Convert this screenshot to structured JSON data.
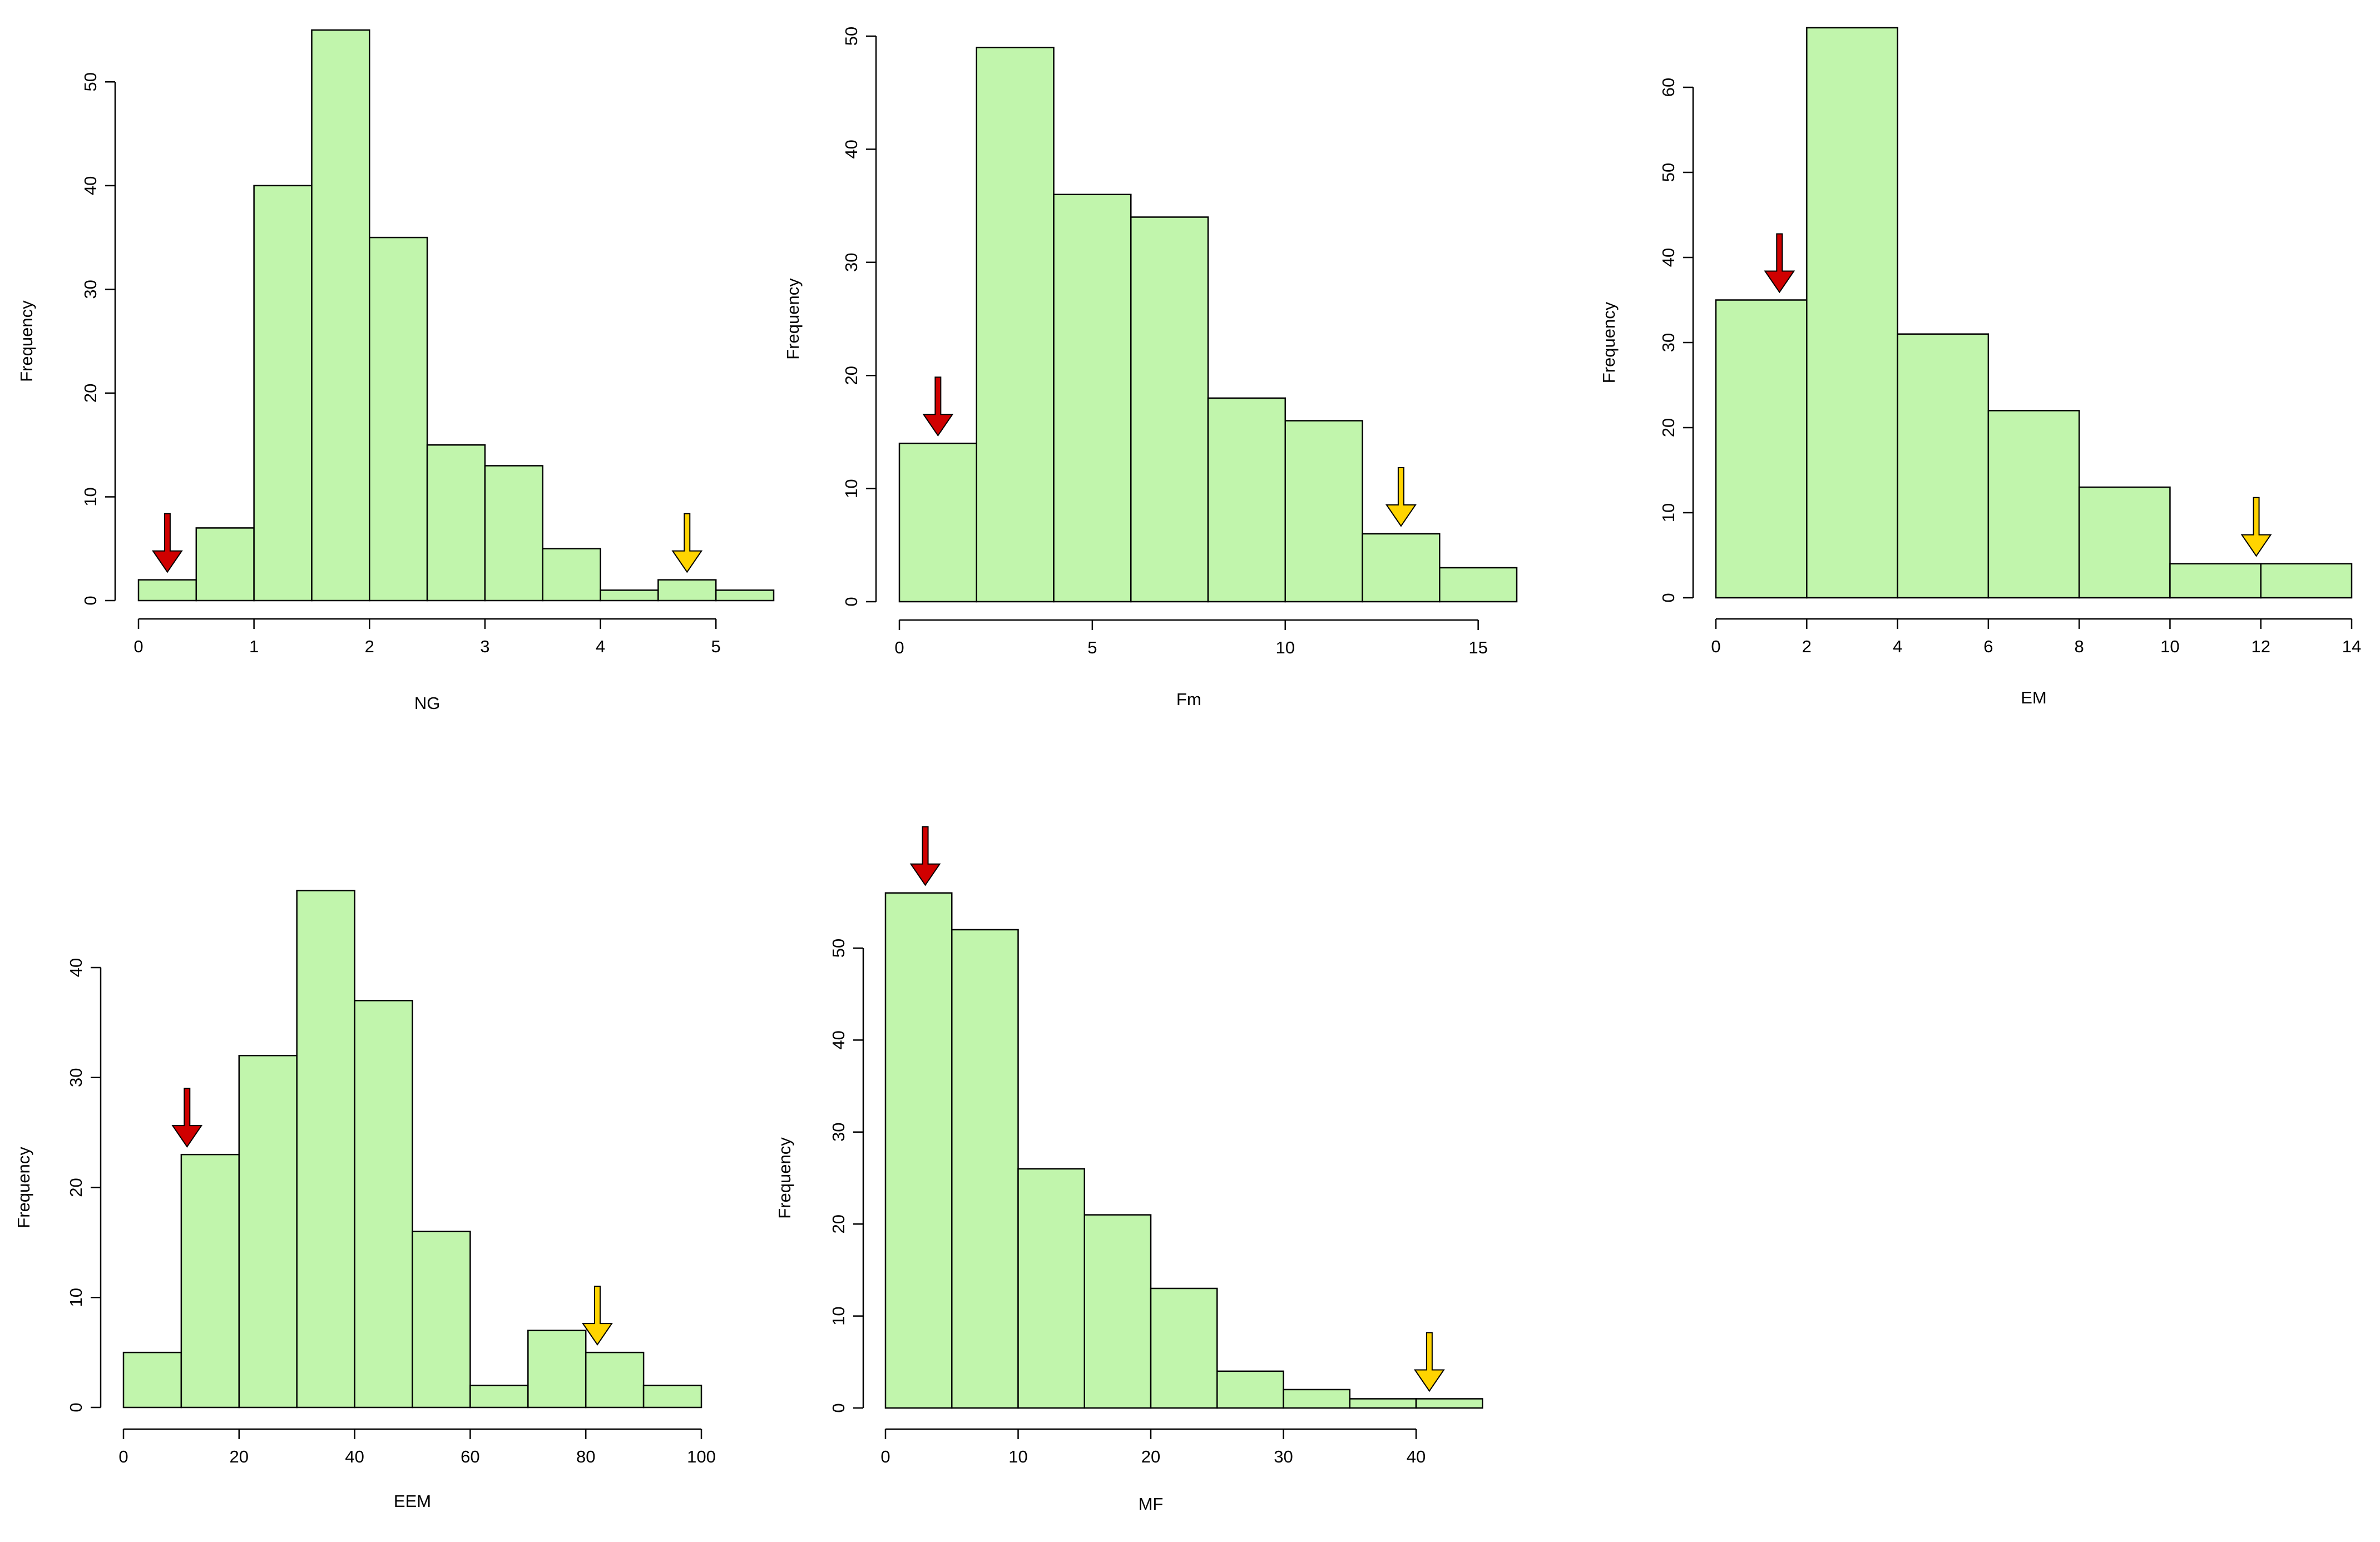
{
  "colors": {
    "bar_fill": "#c1f5ac",
    "bar_stroke": "#000000",
    "arrow_low": "#d00000",
    "arrow_high": "#ffd400",
    "axis": "#000000"
  },
  "chart_data": [
    {
      "type": "bar",
      "subtype": "histogram",
      "xlabel": "NG",
      "ylabel": "Frequency",
      "bin_edges": [
        0,
        0.5,
        1,
        1.5,
        2,
        2.5,
        3,
        3.5,
        4,
        4.5,
        5,
        5.5
      ],
      "values": [
        2,
        7,
        40,
        55,
        35,
        15,
        13,
        5,
        1,
        2,
        1
      ],
      "xticks": [
        0,
        1,
        2,
        3,
        4,
        5
      ],
      "yticks": [
        0,
        10,
        20,
        30,
        40,
        50
      ],
      "xlim": [
        0,
        5.5
      ],
      "ylim": [
        0,
        55
      ],
      "markers": [
        {
          "kind": "low",
          "color": "red",
          "x": 0.25
        },
        {
          "kind": "high",
          "color": "yellow",
          "x": 4.75
        }
      ]
    },
    {
      "type": "bar",
      "subtype": "histogram",
      "xlabel": "Fm",
      "ylabel": "Frequency",
      "bin_edges": [
        0,
        2,
        4,
        6,
        8,
        10,
        12,
        14,
        16
      ],
      "values": [
        14,
        49,
        36,
        34,
        18,
        16,
        6,
        3
      ],
      "xticks": [
        0,
        5,
        10,
        15
      ],
      "yticks": [
        0,
        10,
        20,
        30,
        40,
        50
      ],
      "xlim": [
        0,
        16
      ],
      "ylim": [
        0,
        50
      ],
      "markers": [
        {
          "kind": "low",
          "color": "red",
          "x": 1
        },
        {
          "kind": "high",
          "color": "yellow",
          "x": 13
        }
      ]
    },
    {
      "type": "bar",
      "subtype": "histogram",
      "xlabel": "EM",
      "ylabel": "Frequency",
      "bin_edges": [
        0,
        2,
        4,
        6,
        8,
        10,
        12,
        14
      ],
      "values": [
        35,
        67,
        31,
        22,
        13,
        4,
        4
      ],
      "xticks": [
        0,
        2,
        4,
        6,
        8,
        10,
        12,
        14
      ],
      "yticks": [
        0,
        10,
        20,
        30,
        40,
        50,
        60
      ],
      "xlim": [
        0,
        14
      ],
      "ylim": [
        0,
        60
      ],
      "markers": [
        {
          "kind": "low",
          "color": "red",
          "x": 1.4
        },
        {
          "kind": "high",
          "color": "yellow",
          "x": 11.9
        }
      ]
    },
    {
      "type": "bar",
      "subtype": "histogram",
      "xlabel": "EEM",
      "ylabel": "Frequency",
      "bin_edges": [
        0,
        10,
        20,
        30,
        40,
        50,
        60,
        70,
        80,
        90,
        100
      ],
      "values": [
        5,
        23,
        32,
        47,
        37,
        16,
        2,
        7,
        5,
        2
      ],
      "xticks": [
        0,
        20,
        40,
        60,
        80,
        100
      ],
      "yticks": [
        0,
        10,
        20,
        30,
        40
      ],
      "xlim": [
        0,
        100
      ],
      "ylim": [
        0,
        40
      ],
      "markers": [
        {
          "kind": "low",
          "color": "red",
          "x": 11
        },
        {
          "kind": "high",
          "color": "yellow",
          "x": 82
        }
      ]
    },
    {
      "type": "bar",
      "subtype": "histogram",
      "xlabel": "MF",
      "ylabel": "Frequency",
      "bin_edges": [
        0,
        5,
        10,
        15,
        20,
        25,
        30,
        35,
        40,
        45
      ],
      "values": [
        56,
        52,
        26,
        21,
        13,
        4,
        2,
        1,
        1
      ],
      "xticks": [
        0,
        10,
        20,
        30,
        40
      ],
      "yticks": [
        0,
        10,
        20,
        30,
        40,
        50
      ],
      "xlim": [
        0,
        40
      ],
      "ylim": [
        0,
        50
      ],
      "markers": [
        {
          "kind": "low",
          "color": "red",
          "x": 3
        },
        {
          "kind": "high",
          "color": "yellow",
          "x": 41
        }
      ]
    }
  ]
}
